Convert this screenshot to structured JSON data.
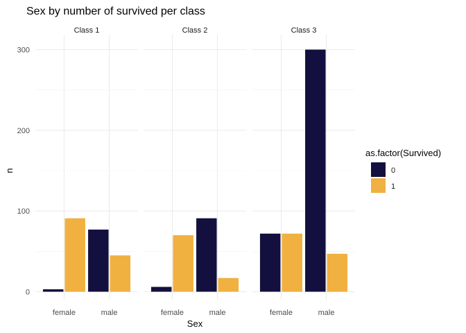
{
  "chart_data": {
    "type": "bar",
    "title": "Sex by number of survived per class",
    "xlabel": "Sex",
    "ylabel": "n",
    "ylim": [
      0,
      310
    ],
    "yticks": [
      0,
      100,
      200,
      300
    ],
    "categories": [
      "female",
      "male"
    ],
    "grid": true,
    "legend": {
      "title": "as.factor(Survived)",
      "placement": "right",
      "entries": [
        {
          "label": "0",
          "color": "#13103f"
        },
        {
          "label": "1",
          "color": "#f0b141"
        }
      ]
    },
    "panels": [
      {
        "label": "Class 1",
        "series": [
          {
            "name": "0",
            "values": [
              3,
              77
            ]
          },
          {
            "name": "1",
            "values": [
              91,
              45
            ]
          }
        ]
      },
      {
        "label": "Class 2",
        "series": [
          {
            "name": "0",
            "values": [
              6,
              91
            ]
          },
          {
            "name": "1",
            "values": [
              70,
              17
            ]
          }
        ]
      },
      {
        "label": "Class 3",
        "series": [
          {
            "name": "0",
            "values": [
              72,
              300
            ]
          },
          {
            "name": "1",
            "values": [
              72,
              47
            ]
          }
        ]
      }
    ]
  }
}
